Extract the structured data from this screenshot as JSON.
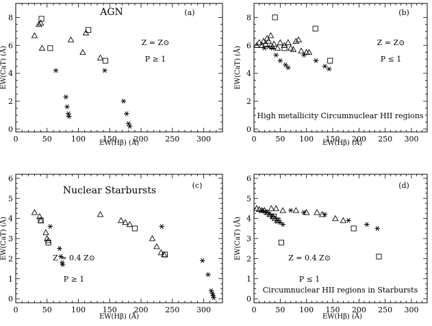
{
  "chart_data": [
    {
      "type": "scatter",
      "panel_label": "(a)",
      "title": "AGN",
      "annotations": [
        "Z = Z⊙",
        "P ≥ 1"
      ],
      "xlabel": "EW(Hβ) (Å)",
      "ylabel": "EW(CaT) (Å)",
      "xlim": [
        0,
        330
      ],
      "ylim": [
        -0.2,
        9
      ],
      "xticks": [
        0,
        50,
        100,
        150,
        200,
        250,
        300
      ],
      "yticks": [
        0,
        2,
        4,
        6,
        8
      ],
      "series": [
        {
          "marker": "triangle",
          "x": [
            30,
            37,
            40,
            42,
            88,
            107,
            112,
            135
          ],
          "y": [
            6.7,
            7.5,
            7.6,
            5.8,
            6.4,
            5.5,
            6.9,
            5.1
          ]
        },
        {
          "marker": "square",
          "x": [
            41,
            55,
            116,
            143
          ],
          "y": [
            7.9,
            5.8,
            7.1,
            4.9
          ]
        },
        {
          "marker": "asterisk",
          "x": [
            64,
            80,
            82,
            84,
            85,
            142,
            172,
            177,
            180,
            182
          ],
          "y": [
            4.2,
            2.3,
            1.6,
            1.1,
            0.9,
            4.2,
            2.0,
            1.1,
            0.4,
            0.2
          ]
        }
      ]
    },
    {
      "type": "scatter",
      "panel_label": "(b)",
      "title": "",
      "annotations": [
        "Z = Z⊙",
        "P ≤ 1",
        "High metallicity Circumnuclear HII regions"
      ],
      "xlabel": "EW(Hβ) (Å)",
      "ylabel": "EW(CaT) (Å)",
      "xlim": [
        0,
        330
      ],
      "ylim": [
        -0.2,
        9
      ],
      "xticks": [
        0,
        50,
        100,
        150,
        200,
        250,
        300
      ],
      "yticks": [
        0,
        2,
        4,
        6,
        8
      ],
      "series": [
        {
          "marker": "triangle",
          "x": [
            5,
            10,
            15,
            18,
            22,
            25,
            28,
            32,
            35,
            38,
            45,
            50,
            58,
            65,
            70,
            75,
            80,
            85,
            90,
            100,
            105
          ],
          "y": [
            6.0,
            6.2,
            6.0,
            6.3,
            6.1,
            6.5,
            6.3,
            6.7,
            5.9,
            6.1,
            5.8,
            6.2,
            6.0,
            6.2,
            5.8,
            5.7,
            6.3,
            6.4,
            5.6,
            5.5,
            5.5
          ]
        },
        {
          "marker": "square",
          "x": [
            40,
            58,
            117,
            145
          ],
          "y": [
            8.0,
            5.8,
            7.2,
            4.9
          ]
        },
        {
          "marker": "asterisk",
          "x": [
            20,
            28,
            35,
            42,
            50,
            60,
            65,
            95,
            118,
            135,
            143
          ],
          "y": [
            5.8,
            5.9,
            5.8,
            5.3,
            4.9,
            4.6,
            4.4,
            5.3,
            4.9,
            4.5,
            4.3
          ]
        }
      ]
    },
    {
      "type": "scatter",
      "panel_label": "(c)",
      "title": "Nuclear Starbursts",
      "annotations": [
        "Z = 0.4 Z⊙",
        "P ≥ 1"
      ],
      "xlabel": "EW(Hβ) (Å)",
      "ylabel": "EW(CaT) (Å)",
      "xlim": [
        0,
        330
      ],
      "ylim": [
        -0.2,
        6.2
      ],
      "xticks": [
        0,
        50,
        100,
        150,
        200,
        250,
        300
      ],
      "yticks": [
        0,
        1,
        2,
        3,
        4,
        5,
        6
      ],
      "series": [
        {
          "marker": "triangle",
          "x": [
            30,
            38,
            40,
            48,
            50,
            52,
            135,
            168,
            175,
            182,
            218,
            225,
            232,
            237
          ],
          "y": [
            4.3,
            4.1,
            3.9,
            3.3,
            3.0,
            2.9,
            4.2,
            3.9,
            3.8,
            3.7,
            3.0,
            2.6,
            2.3,
            2.2
          ]
        },
        {
          "marker": "square",
          "x": [
            40,
            52,
            190,
            238
          ],
          "y": [
            3.9,
            2.8,
            3.5,
            2.2
          ]
        },
        {
          "marker": "asterisk",
          "x": [
            55,
            70,
            72,
            74,
            75,
            233,
            298,
            307,
            312,
            314,
            315,
            316
          ],
          "y": [
            3.6,
            2.5,
            2.1,
            1.8,
            1.7,
            3.6,
            1.9,
            1.2,
            0.4,
            0.25,
            0.15,
            0.05
          ]
        }
      ]
    },
    {
      "type": "scatter",
      "panel_label": "(d)",
      "title": "",
      "annotations": [
        "Z = 0.4 Z⊙",
        "P ≤ 1",
        "Circumnuclear HII regions in Starbursts"
      ],
      "xlabel": "EW(Hβ) (Å)",
      "ylabel": "EW(CaT) (Å)",
      "xlim": [
        0,
        330
      ],
      "ylim": [
        -0.2,
        6.2
      ],
      "xticks": [
        0,
        50,
        100,
        150,
        200,
        250,
        300
      ],
      "yticks": [
        0,
        1,
        2,
        3,
        4,
        5,
        6
      ],
      "series": [
        {
          "marker": "triangle",
          "x": [
            5,
            10,
            15,
            20,
            25,
            30,
            33,
            36,
            40,
            42,
            45,
            55,
            80,
            100,
            120,
            130,
            155,
            170
          ],
          "y": [
            4.5,
            4.45,
            4.4,
            4.4,
            4.3,
            4.2,
            4.5,
            4.1,
            4.0,
            4.5,
            3.9,
            4.4,
            4.4,
            4.3,
            4.3,
            4.2,
            4.0,
            3.9
          ]
        },
        {
          "marker": "square",
          "x": [
            38,
            45,
            52,
            190,
            238
          ],
          "y": [
            4.1,
            3.9,
            2.8,
            3.5,
            2.1
          ]
        },
        {
          "marker": "asterisk",
          "x": [
            15,
            20,
            25,
            30,
            35,
            45,
            50,
            55,
            70,
            95,
            135,
            180,
            215,
            235
          ],
          "y": [
            4.4,
            4.35,
            4.3,
            4.2,
            4.1,
            3.9,
            3.8,
            3.7,
            4.4,
            4.3,
            4.2,
            3.9,
            3.7,
            3.5
          ]
        }
      ]
    }
  ]
}
